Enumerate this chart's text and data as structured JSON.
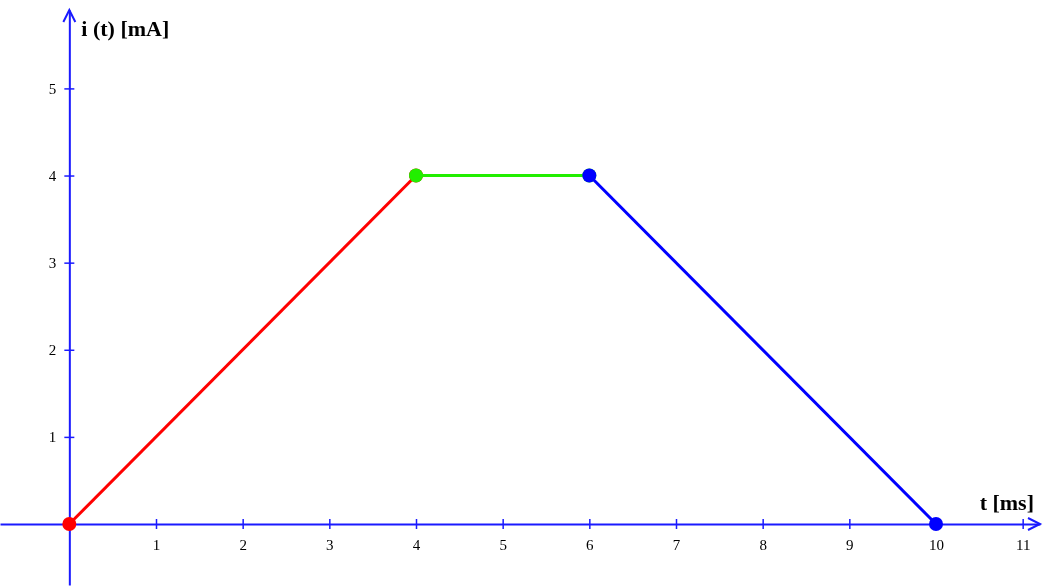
{
  "chart_data": {
    "type": "line",
    "xlabel": "t [ms]",
    "ylabel": "i (t) [mA]",
    "xlim": [
      -0.8,
      11.2
    ],
    "ylim": [
      -0.7,
      5.9
    ],
    "xticks": [
      1,
      2,
      3,
      4,
      5,
      6,
      7,
      8,
      9,
      10,
      11
    ],
    "yticks": [
      1,
      2,
      3,
      4,
      5
    ],
    "grid": false,
    "legend": false,
    "marker": "circle",
    "line_style": "solid",
    "series": [
      {
        "color": "#ff0000",
        "x": [
          0,
          4
        ],
        "values": [
          0,
          4
        ]
      },
      {
        "color": "#22ee00",
        "x": [
          4,
          6
        ],
        "values": [
          4,
          4
        ]
      },
      {
        "color": "#0000ff",
        "x": [
          6,
          10
        ],
        "values": [
          4,
          0
        ]
      }
    ]
  }
}
